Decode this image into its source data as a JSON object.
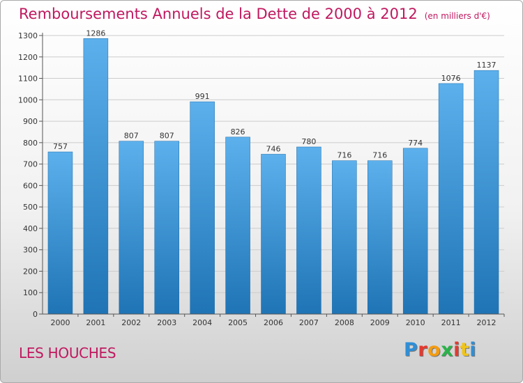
{
  "title": "Remboursements Annuels de la Dette de 2000 à 2012",
  "unit_note": "(en milliers d'€)",
  "commune": "LES HOUCHES",
  "logo": {
    "text": "Proxiti",
    "letter_colors": [
      "#2e8fd8",
      "#e6392e",
      "#f39c12",
      "#2bb34a",
      "#e6392e",
      "#f0c419",
      "#2e8fd8"
    ]
  },
  "colors": {
    "title": "#c0185f",
    "bar_top": "#5cb0ec",
    "bar_bottom": "#1f74b5",
    "grid": "#cccccc"
  },
  "chart_data": {
    "type": "bar",
    "categories": [
      "2000",
      "2001",
      "2002",
      "2003",
      "2004",
      "2005",
      "2006",
      "2007",
      "2008",
      "2009",
      "2010",
      "2011",
      "2012"
    ],
    "values": [
      757,
      1286,
      807,
      807,
      991,
      826,
      746,
      780,
      716,
      716,
      774,
      1076,
      1137
    ],
    "ylim": [
      0,
      1300
    ],
    "yticks": [
      0,
      100,
      200,
      300,
      400,
      500,
      600,
      700,
      800,
      900,
      1000,
      1100,
      1200,
      1300
    ],
    "grid": true,
    "data_labels": true,
    "xlabel": "",
    "ylabel": ""
  }
}
